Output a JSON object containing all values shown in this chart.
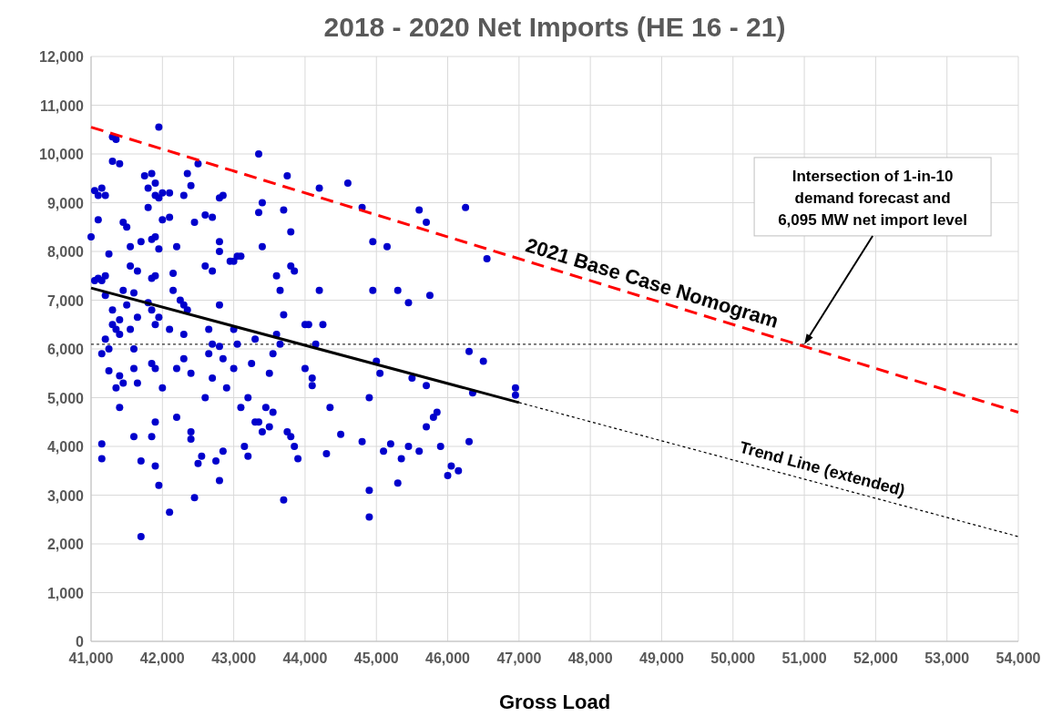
{
  "chart_data": {
    "type": "scatter",
    "title": "2018 - 2020 Net Imports (HE 16 - 21)",
    "xlabel": "Gross Load",
    "xlim": [
      41000,
      54000
    ],
    "xticks": [
      {
        "value": 41000,
        "label": "41,000"
      },
      {
        "value": 42000,
        "label": "42,000"
      },
      {
        "value": 43000,
        "label": "43,000"
      },
      {
        "value": 44000,
        "label": "44,000"
      },
      {
        "value": 45000,
        "label": "45,000"
      },
      {
        "value": 46000,
        "label": "46,000"
      },
      {
        "value": 47000,
        "label": "47,000"
      },
      {
        "value": 48000,
        "label": "48,000"
      },
      {
        "value": 49000,
        "label": "49,000"
      },
      {
        "value": 50000,
        "label": "50,000"
      },
      {
        "value": 51000,
        "label": "51,000"
      },
      {
        "value": 52000,
        "label": "52,000"
      },
      {
        "value": 53000,
        "label": "53,000"
      },
      {
        "value": 54000,
        "label": "54,000"
      }
    ],
    "ylim": [
      0,
      12000
    ],
    "yticks": [
      0,
      {
        "value": 1000,
        "label": "1,000"
      },
      {
        "value": 2000,
        "label": "2,000"
      },
      {
        "value": 3000,
        "label": "3,000"
      },
      {
        "value": 4000,
        "label": "4,000"
      },
      {
        "value": 5000,
        "label": "5,000"
      },
      {
        "value": 6000,
        "label": "6,000"
      },
      {
        "value": 7000,
        "label": "7,000"
      },
      {
        "value": 8000,
        "label": "8,000"
      },
      {
        "value": 9000,
        "label": "9,000"
      },
      {
        "value": 10000,
        "label": "10,000"
      },
      {
        "value": 11000,
        "label": "11,000"
      },
      {
        "value": 12000,
        "label": "12,000"
      }
    ],
    "grid": true,
    "series": [
      {
        "color": "#0000cc",
        "marker": "circle",
        "x": [
          41000,
          41050,
          41100,
          41150,
          41200,
          41050,
          41100,
          41150,
          41200,
          41100,
          41150,
          41200,
          41250,
          41300,
          41250,
          41150,
          41150,
          41200,
          41250,
          41300,
          41350,
          41300,
          41400,
          41300,
          41350,
          41400,
          41400,
          41450,
          41400,
          41350,
          41400,
          41450,
          41450,
          41500,
          41550,
          41550,
          41600,
          41550,
          41600,
          41500,
          41650,
          41600,
          41650,
          41600,
          41700,
          41700,
          41650,
          41700,
          41750,
          41800,
          41800,
          41850,
          41900,
          41900,
          41950,
          42000,
          41850,
          41900,
          41950,
          42000,
          41850,
          41900,
          41800,
          41850,
          41900,
          41950,
          41850,
          41900,
          42000,
          41900,
          41850,
          41900,
          41950,
          41950,
          42100,
          42100,
          42150,
          42150,
          42200,
          42100,
          42200,
          42100,
          42200,
          42300,
          42350,
          42400,
          42500,
          42250,
          42300,
          42300,
          42350,
          42300,
          42400,
          42400,
          42400,
          42450,
          42500,
          42550,
          42450,
          42600,
          42700,
          42600,
          42700,
          42800,
          42800,
          42850,
          42800,
          42650,
          42700,
          42650,
          42700,
          42800,
          42800,
          42850,
          42900,
          42750,
          42800,
          42850,
          42600,
          42950,
          43000,
          43050,
          43100,
          43000,
          43050,
          43000,
          43100,
          43150,
          43200,
          43200,
          43250,
          43300,
          43350,
          43400,
          43350,
          43400,
          43300,
          43350,
          43400,
          43450,
          43500,
          43550,
          43500,
          43550,
          43600,
          43650,
          43600,
          43650,
          43700,
          43700,
          43750,
          43800,
          43800,
          43850,
          43700,
          43750,
          43800,
          43850,
          43900,
          44000,
          44050,
          44100,
          44000,
          44100,
          44150,
          44200,
          44200,
          44250,
          44300,
          44350,
          44500,
          44600,
          44800,
          44800,
          44900,
          44900,
          44900,
          44950,
          44950,
          45000,
          45050,
          45100,
          45150,
          45200,
          45300,
          45300,
          45350,
          45450,
          45450,
          45500,
          45600,
          45600,
          45700,
          45700,
          45700,
          45750,
          45800,
          45850,
          45900,
          46000,
          46050,
          46150,
          46250,
          46300,
          46350,
          46300,
          46500,
          46550,
          46950,
          46950
        ],
        "values": [
          8300,
          9250,
          9150,
          9300,
          9150,
          7400,
          7450,
          7400,
          7500,
          8650,
          5900,
          6200,
          6000,
          6500,
          5550,
          4050,
          3750,
          7100,
          7950,
          10350,
          10300,
          9850,
          9800,
          6800,
          6400,
          6600,
          6300,
          7200,
          5450,
          5200,
          4800,
          5300,
          8600,
          8500,
          8100,
          7700,
          7150,
          6400,
          6000,
          6900,
          6650,
          5600,
          5300,
          4200,
          3700,
          2150,
          7600,
          8200,
          9550,
          9300,
          8900,
          9600,
          9400,
          9150,
          9100,
          9200,
          8250,
          8300,
          8050,
          8650,
          7450,
          7500,
          6950,
          6800,
          6500,
          6650,
          5700,
          5600,
          5200,
          4500,
          4200,
          3600,
          3200,
          10550,
          9200,
          8700,
          7550,
          7200,
          8100,
          6400,
          5600,
          2650,
          4600,
          9150,
          9600,
          9350,
          9800,
          7000,
          6900,
          6300,
          6800,
          5800,
          5500,
          4300,
          4150,
          2950,
          3650,
          3800,
          8600,
          8750,
          8700,
          7700,
          7600,
          8000,
          8200,
          9150,
          9100,
          6400,
          6100,
          5900,
          5400,
          6900,
          6050,
          5800,
          5200,
          3700,
          3300,
          3900,
          5000,
          7800,
          7800,
          7900,
          7900,
          6400,
          6100,
          5600,
          4800,
          4000,
          3800,
          5000,
          5700,
          6200,
          8800,
          8100,
          10000,
          9000,
          4500,
          4500,
          4300,
          4800,
          4400,
          4700,
          5500,
          5900,
          6300,
          7200,
          7500,
          6100,
          6700,
          8850,
          9550,
          8400,
          7700,
          7600,
          2900,
          4300,
          4200,
          4000,
          3750,
          6500,
          6500,
          5400,
          5600,
          5250,
          6100,
          7200,
          9300,
          6500,
          3850,
          4800,
          4250,
          9400,
          4100,
          8900,
          5000,
          3100,
          2550,
          7200,
          8200,
          5750,
          5500,
          3900,
          8100,
          4050,
          7200,
          3250,
          3750,
          6950,
          4000,
          5400,
          3900,
          8850,
          8600,
          5250,
          4400,
          7100,
          4600,
          4700,
          4000,
          3400,
          3600,
          3500,
          8900,
          5950,
          5100,
          4100,
          5750,
          7850,
          5200,
          5050
        ]
      },
      {
        "type": "line",
        "color": "#000000",
        "line_style": "solid",
        "x": [
          41000,
          47000
        ],
        "values": [
          7250,
          4900
        ]
      },
      {
        "type": "line",
        "name": "Trend Line (extended)",
        "color": "#000000",
        "line_style": "dotted",
        "x": [
          47000,
          54000
        ],
        "values": [
          4900,
          2150
        ]
      },
      {
        "type": "line",
        "name": "2021 Base Case Nomogram",
        "color": "#ff0000",
        "line_style": "dashed",
        "x": [
          41000,
          54000
        ],
        "values": [
          10550,
          4700
        ]
      }
    ],
    "ref_lines": [
      {
        "axis": "y",
        "value": 6095,
        "color": "#000000",
        "line_style": "dashed"
      }
    ],
    "annotations": [
      {
        "text": "Intersection of 1-in-10\ndemand forecast and\n6,095 MW net import level",
        "x": 51000,
        "y": 6095
      }
    ]
  }
}
